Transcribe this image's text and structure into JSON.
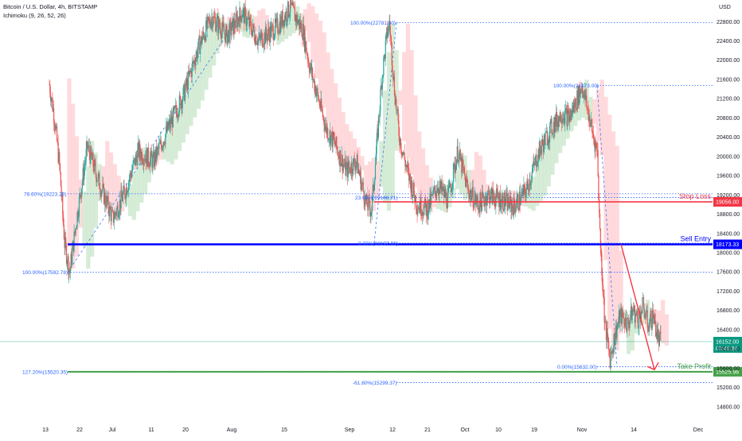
{
  "chart_data": {
    "type": "candlestick",
    "title": "Bitcoin / U.S. Dollar, 4h, BITSTAMP",
    "indicator": "Ichimoku (9, 26, 52, 26)",
    "currency": "USD",
    "y_ticks": [
      14800,
      15200,
      15600,
      16000,
      16400,
      16800,
      17200,
      17600,
      18000,
      18400,
      18800,
      19200,
      19600,
      20000,
      20400,
      20800,
      21200,
      21600,
      22000,
      22400,
      22800
    ],
    "y_tick_labels": [
      "14800.00",
      "15200.00",
      "15600.00",
      "16000.00",
      "16400.00",
      "16800.00",
      "17200.00",
      "17600.00",
      "18000.00",
      "18400.00",
      "18800.00",
      "19200.00",
      "19600.00",
      "20000.00",
      "20400.00",
      "20800.00",
      "21200.00",
      "21600.00",
      "22000.00",
      "22400.00",
      "22800.00"
    ],
    "ylim": [
      14500,
      23250
    ],
    "x_labels": [
      "13",
      "22",
      "Jul",
      "11",
      "20",
      "Aug",
      "15",
      "Sep",
      "12",
      "21",
      "Oct",
      "10",
      "19",
      "Nov",
      "14",
      "Dec"
    ],
    "levels": [
      {
        "name": "Stop Loss",
        "price": 19056.0,
        "label": "Stop Loss",
        "badge": "19056.00",
        "color": "#f23645"
      },
      {
        "name": "Sell Entry",
        "price": 18173.33,
        "label": "Sell Entry",
        "badge": "18173.33",
        "color": "#0000ff"
      },
      {
        "name": "Take Profit",
        "price": 15525.96,
        "label": "Take Profit",
        "badge": "15525.96",
        "color": "#43a047"
      }
    ],
    "current_price": {
      "value": 16152.0,
      "label": "16152.00",
      "countdown": "03:45:39",
      "color": "#089981"
    },
    "fib_labels": [
      {
        "text": "100.00%(22781.00)",
        "price": 22781
      },
      {
        "text": "100.00%(21473.00)",
        "price": 21473
      },
      {
        "text": "78.60%(19223.29)",
        "price": 19223.29
      },
      {
        "text": "23.60%(19148.21)",
        "price": 19148.21
      },
      {
        "text": "0.00%(18197.00)",
        "price": 18197
      },
      {
        "text": "100.00%(17592.78)",
        "price": 17592.78
      },
      {
        "text": "0.00%(15632.00)",
        "price": 15632
      },
      {
        "text": "127.20%(15520.35)",
        "price": 15520.35
      },
      {
        "text": "-61.80%(15299.37)",
        "price": 15299.37
      }
    ],
    "price_path": [
      [
        0,
        21500
      ],
      [
        4,
        20800
      ],
      [
        8,
        19800
      ],
      [
        12,
        18200
      ],
      [
        16,
        17600
      ],
      [
        22,
        18800
      ],
      [
        30,
        20200
      ],
      [
        40,
        19400
      ],
      [
        50,
        18700
      ],
      [
        60,
        19300
      ],
      [
        70,
        20100
      ],
      [
        82,
        19900
      ],
      [
        94,
        20600
      ],
      [
        106,
        21300
      ],
      [
        118,
        22300
      ],
      [
        128,
        22900
      ],
      [
        140,
        22500
      ],
      [
        152,
        23000
      ],
      [
        165,
        22400
      ],
      [
        180,
        22700
      ],
      [
        190,
        23100
      ],
      [
        200,
        22600
      ],
      [
        205,
        21900
      ],
      [
        210,
        21400
      ],
      [
        218,
        20600
      ],
      [
        226,
        20200
      ],
      [
        234,
        19700
      ],
      [
        242,
        19900
      ],
      [
        250,
        19000
      ],
      [
        254,
        18900
      ],
      [
        258,
        20200
      ],
      [
        262,
        21600
      ],
      [
        266,
        22500
      ],
      [
        268,
        22781
      ],
      [
        272,
        21400
      ],
      [
        276,
        20400
      ],
      [
        282,
        19700
      ],
      [
        290,
        19000
      ],
      [
        298,
        18900
      ],
      [
        306,
        19400
      ],
      [
        314,
        19100
      ],
      [
        322,
        20100
      ],
      [
        330,
        19300
      ],
      [
        338,
        19000
      ],
      [
        346,
        19200
      ],
      [
        356,
        19100
      ],
      [
        366,
        18950
      ],
      [
        376,
        19300
      ],
      [
        386,
        20100
      ],
      [
        396,
        20600
      ],
      [
        404,
        20900
      ],
      [
        410,
        20800
      ],
      [
        416,
        21200
      ],
      [
        420,
        21473
      ],
      [
        424,
        21000
      ],
      [
        428,
        20500
      ],
      [
        432,
        20100
      ],
      [
        434,
        18400
      ],
      [
        438,
        16500
      ],
      [
        442,
        15800
      ],
      [
        446,
        16300
      ],
      [
        450,
        16700
      ],
      [
        456,
        16500
      ],
      [
        460,
        16800
      ],
      [
        464,
        16600
      ],
      [
        468,
        16900
      ],
      [
        472,
        16500
      ],
      [
        476,
        16700
      ],
      [
        480,
        16200
      ],
      [
        482,
        16152
      ]
    ]
  }
}
